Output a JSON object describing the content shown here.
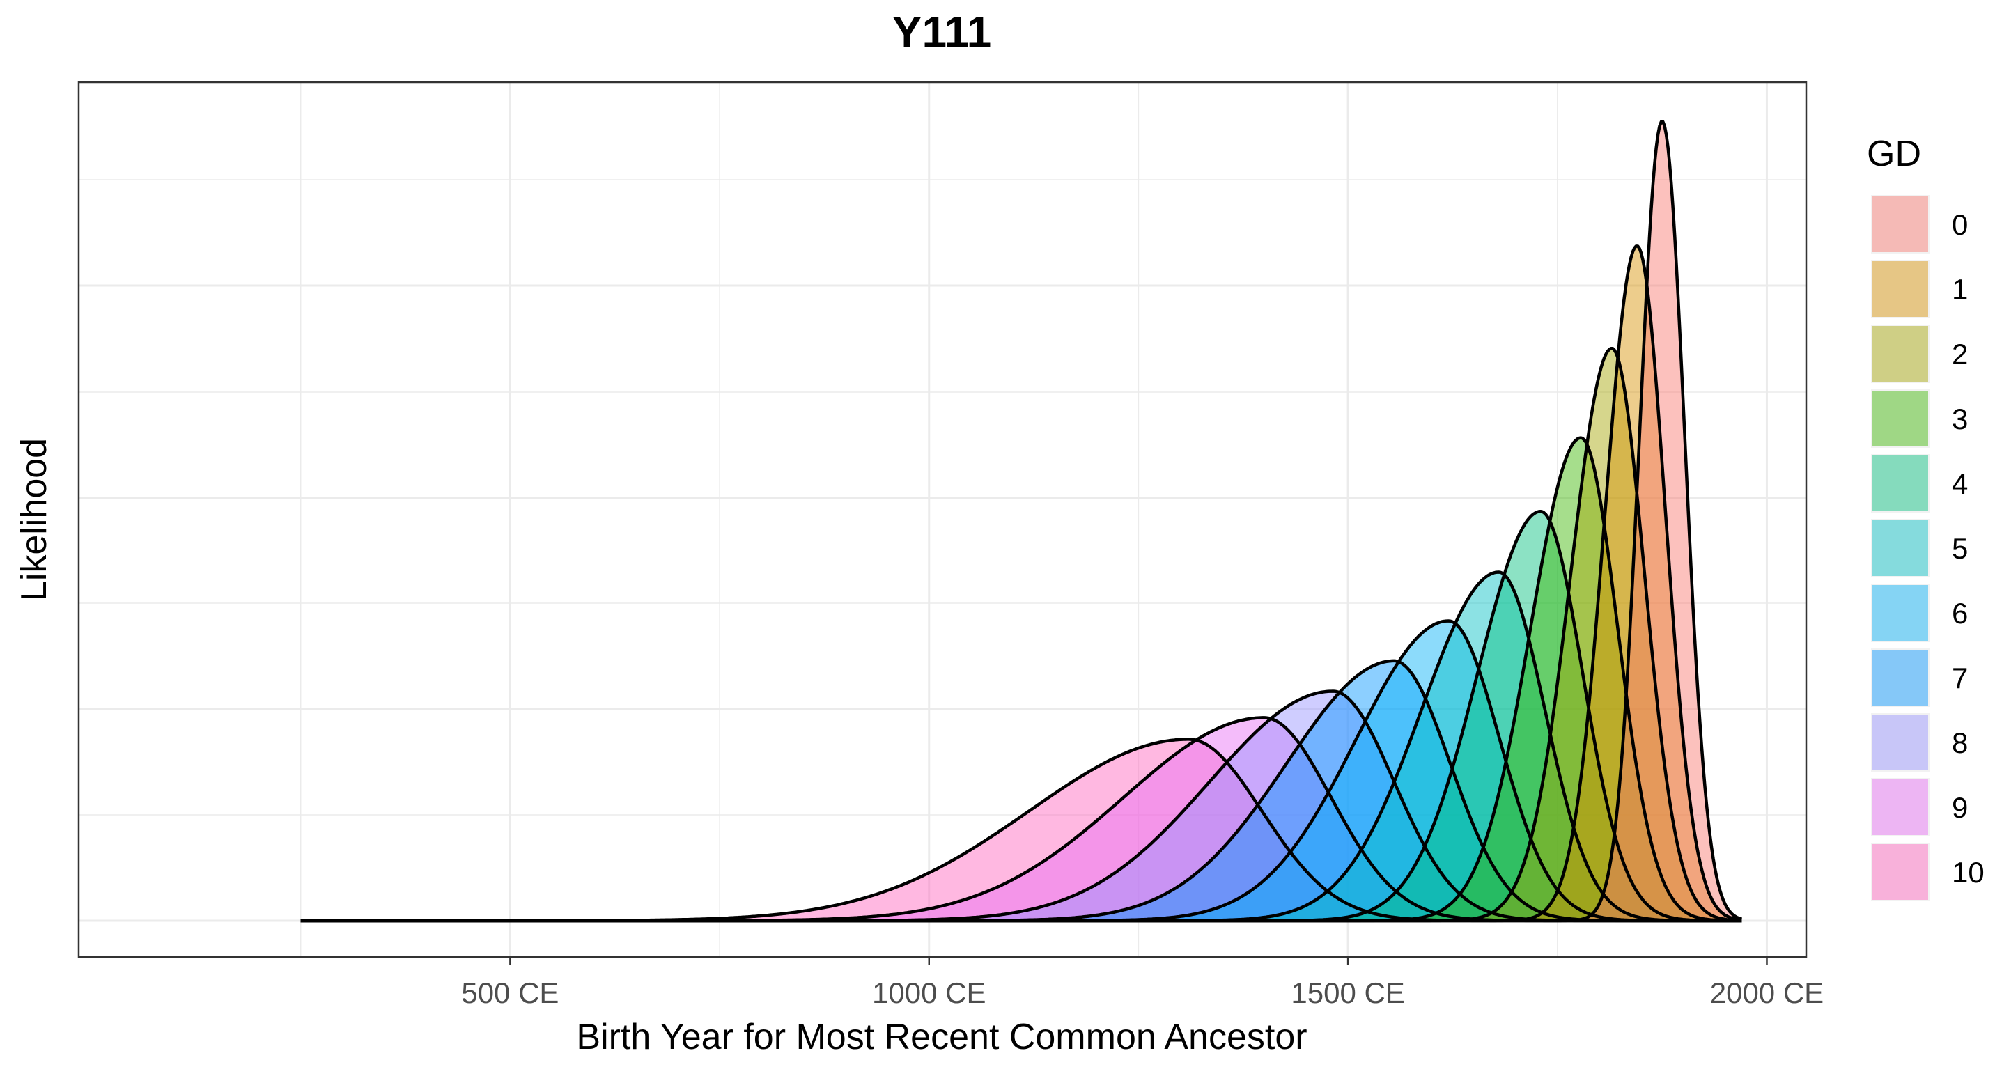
{
  "chart_data": {
    "type": "area",
    "title": "Y111",
    "xlabel": "Birth Year for Most Recent Common Ancestor",
    "ylabel": "Likelihood",
    "x_tick_labels": [
      "500 CE",
      "1000 CE",
      "1500 CE",
      "2000 CE"
    ],
    "x_ticks": [
      500,
      1000,
      1500,
      2000
    ],
    "xlim": [
      -15,
      2047
    ],
    "y_tick_labels": [],
    "grid": true,
    "legend": {
      "title": "GD",
      "position": "right"
    },
    "series": [
      {
        "name": "0",
        "color": "#F8766D",
        "peak_year": 1875,
        "sd_left": 27,
        "sd_right": 27,
        "peak_height": 1.0
      },
      {
        "name": "1",
        "color": "#D89000",
        "peak_year": 1845,
        "sd_left": 38,
        "sd_right": 34,
        "peak_height": 0.844
      },
      {
        "name": "2",
        "color": "#A3A500",
        "peak_year": 1815,
        "sd_left": 49,
        "sd_right": 39,
        "peak_height": 0.716
      },
      {
        "name": "3",
        "color": "#39B600",
        "peak_year": 1778,
        "sd_left": 60,
        "sd_right": 44,
        "peak_height": 0.604
      },
      {
        "name": "4",
        "color": "#00BF7D",
        "peak_year": 1730,
        "sd_left": 75,
        "sd_right": 50,
        "peak_height": 0.512
      },
      {
        "name": "5",
        "color": "#00BFC4",
        "peak_year": 1680,
        "sd_left": 92,
        "sd_right": 55,
        "peak_height": 0.436
      },
      {
        "name": "6",
        "color": "#00B0F6",
        "peak_year": 1620,
        "sd_left": 110,
        "sd_right": 61,
        "peak_height": 0.375
      },
      {
        "name": "7",
        "color": "#0094FF",
        "peak_year": 1555,
        "sd_left": 128,
        "sd_right": 67,
        "peak_height": 0.325
      },
      {
        "name": "8",
        "color": "#9590FF",
        "peak_year": 1482,
        "sd_left": 147,
        "sd_right": 73,
        "peak_height": 0.287
      },
      {
        "name": "9",
        "color": "#E76BF3",
        "peak_year": 1400,
        "sd_left": 168,
        "sd_right": 80,
        "peak_height": 0.254
      },
      {
        "name": "10",
        "color": "#FF62BC",
        "peak_year": 1310,
        "sd_left": 190,
        "sd_right": 87,
        "peak_height": 0.227
      }
    ],
    "x_range": [
      250,
      1970
    ]
  }
}
